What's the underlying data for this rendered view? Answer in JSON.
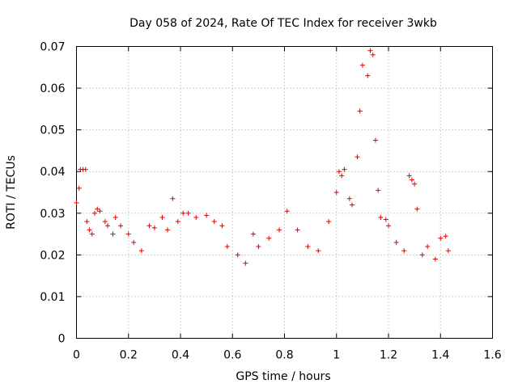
{
  "chart_data": {
    "type": "scatter",
    "title": "Day 058 of 2024, Rate Of TEC Index for receiver 3wkb",
    "xlabel": "GPS time / hours",
    "ylabel": "ROTI / TECUs",
    "xlim": [
      0,
      1.6
    ],
    "ylim": [
      0,
      0.07
    ],
    "x_ticks": [
      "0",
      "0.2",
      "0.4",
      "0.6",
      "0.8",
      "1",
      "1.2",
      "1.4",
      "1.6"
    ],
    "y_ticks": [
      "0",
      "0.01",
      "0.02",
      "0.03",
      "0.04",
      "0.05",
      "0.06",
      "0.07"
    ],
    "grid": true,
    "marker": "+",
    "color": "#e00000",
    "series": [
      {
        "name": "ROTI",
        "points": [
          [
            0.0,
            0.0325
          ],
          [
            0.01,
            0.036
          ],
          [
            0.015,
            0.0405
          ],
          [
            0.025,
            0.0405
          ],
          [
            0.035,
            0.0405
          ],
          [
            0.04,
            0.028
          ],
          [
            0.05,
            0.026
          ],
          [
            0.06,
            0.025
          ],
          [
            0.07,
            0.03
          ],
          [
            0.08,
            0.031
          ],
          [
            0.09,
            0.0305
          ],
          [
            0.11,
            0.028
          ],
          [
            0.12,
            0.027
          ],
          [
            0.14,
            0.025
          ],
          [
            0.15,
            0.029
          ],
          [
            0.17,
            0.027
          ],
          [
            0.2,
            0.025
          ],
          [
            0.22,
            0.023
          ],
          [
            0.25,
            0.021
          ],
          [
            0.28,
            0.027
          ],
          [
            0.3,
            0.0265
          ],
          [
            0.33,
            0.029
          ],
          [
            0.35,
            0.026
          ],
          [
            0.37,
            0.0335
          ],
          [
            0.39,
            0.028
          ],
          [
            0.41,
            0.03
          ],
          [
            0.43,
            0.03
          ],
          [
            0.46,
            0.029
          ],
          [
            0.5,
            0.0295
          ],
          [
            0.53,
            0.028
          ],
          [
            0.56,
            0.027
          ],
          [
            0.58,
            0.022
          ],
          [
            0.62,
            0.02
          ],
          [
            0.65,
            0.018
          ],
          [
            0.68,
            0.025
          ],
          [
            0.7,
            0.022
          ],
          [
            0.74,
            0.024
          ],
          [
            0.78,
            0.026
          ],
          [
            0.81,
            0.0305
          ],
          [
            0.85,
            0.026
          ],
          [
            0.89,
            0.022
          ],
          [
            0.93,
            0.021
          ],
          [
            0.97,
            0.028
          ],
          [
            1.0,
            0.035
          ],
          [
            1.01,
            0.04
          ],
          [
            1.02,
            0.039
          ],
          [
            1.03,
            0.0405
          ],
          [
            1.05,
            0.0335
          ],
          [
            1.06,
            0.032
          ],
          [
            1.08,
            0.0435
          ],
          [
            1.09,
            0.0545
          ],
          [
            1.1,
            0.0655
          ],
          [
            1.12,
            0.063
          ],
          [
            1.13,
            0.069
          ],
          [
            1.14,
            0.068
          ],
          [
            1.15,
            0.0475
          ],
          [
            1.16,
            0.0355
          ],
          [
            1.17,
            0.029
          ],
          [
            1.19,
            0.0285
          ],
          [
            1.2,
            0.027
          ],
          [
            1.23,
            0.023
          ],
          [
            1.26,
            0.021
          ],
          [
            1.28,
            0.039
          ],
          [
            1.29,
            0.038
          ],
          [
            1.3,
            0.037
          ],
          [
            1.31,
            0.031
          ],
          [
            1.33,
            0.02
          ],
          [
            1.35,
            0.022
          ],
          [
            1.38,
            0.019
          ],
          [
            1.4,
            0.024
          ],
          [
            1.42,
            0.0245
          ],
          [
            1.43,
            0.021
          ]
        ]
      }
    ]
  }
}
